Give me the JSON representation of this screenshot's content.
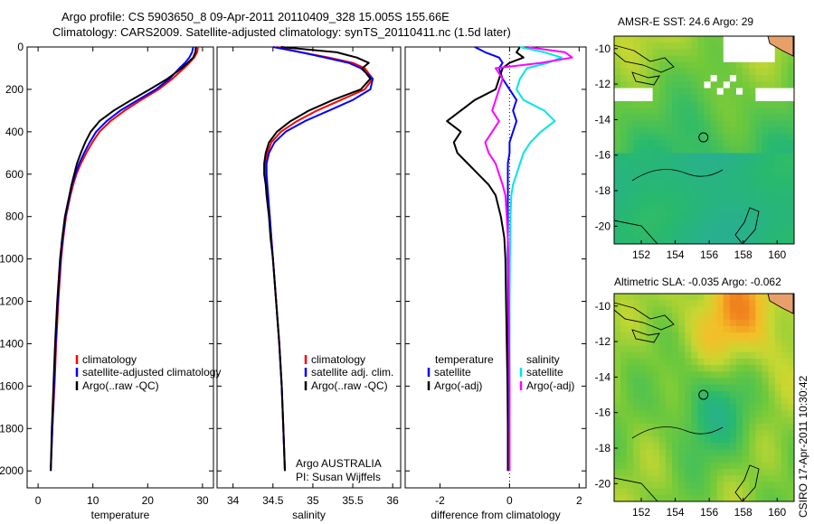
{
  "header": {
    "line1": "Argo profile: CS 5903650_8 09-Apr-2011 20110409_328 15.005S 155.66E",
    "line2": "Climatology: CARS2009. Satellite-adjusted climatology: synTS_20110411.nc (1.5d later)"
  },
  "footer": {
    "stamp": "CSIRO 17-Apr-2011 10:30:42"
  },
  "colors": {
    "clim": "#ff0000",
    "sat": "#0000ff",
    "argo": "#000000",
    "sal_sat": "#00e6e6",
    "sal_argo": "#ff00ff",
    "axis": "#000000"
  },
  "chart_data": [
    {
      "id": "temperature",
      "type": "line",
      "xlabel": "temperature",
      "xlim": [
        -2,
        32
      ],
      "ylim": [
        2080,
        0
      ],
      "xticks": [
        0,
        10,
        20,
        30
      ],
      "yticks": [
        0,
        200,
        400,
        600,
        800,
        1000,
        1200,
        1400,
        1600,
        1800,
        2000
      ],
      "legend": [
        "climatology",
        "satellite-adjusted climatology",
        "Argo(..raw -QC)"
      ],
      "depth": [
        0,
        25,
        50,
        75,
        100,
        150,
        200,
        250,
        300,
        350,
        400,
        450,
        500,
        550,
        600,
        650,
        700,
        800,
        900,
        1000,
        1200,
        1400,
        1600,
        1800,
        2000
      ],
      "series": [
        {
          "name": "climatology",
          "color": "red",
          "values": [
            29.2,
            29.0,
            28.5,
            27.6,
            26.6,
            24.5,
            22.0,
            18.8,
            15.8,
            13.2,
            11.2,
            9.9,
            8.8,
            7.8,
            7.0,
            6.4,
            5.9,
            5.1,
            4.6,
            4.2,
            3.7,
            3.3,
            3.0,
            2.6,
            2.3
          ]
        },
        {
          "name": "satellite-adjusted climatology",
          "color": "blue",
          "values": [
            28.3,
            28.1,
            27.6,
            26.8,
            25.8,
            24.0,
            21.5,
            18.2,
            15.0,
            12.5,
            10.6,
            9.4,
            8.4,
            7.5,
            6.8,
            6.2,
            5.8,
            5.0,
            4.5,
            4.1,
            3.6,
            3.2,
            2.9,
            2.6,
            2.3
          ]
        },
        {
          "name": "Argo(..raw -QC)",
          "color": "black",
          "values": [
            28.8,
            28.7,
            28.3,
            27.3,
            26.2,
            23.6,
            20.4,
            17.0,
            13.8,
            11.2,
            9.6,
            8.6,
            7.8,
            7.1,
            6.6,
            6.1,
            5.7,
            4.9,
            4.4,
            4.0,
            3.5,
            3.1,
            2.8,
            2.5,
            2.3
          ]
        }
      ]
    },
    {
      "id": "salinity",
      "type": "line",
      "xlabel": "salinity",
      "xlim": [
        33.8,
        36.1
      ],
      "ylim": [
        2080,
        0
      ],
      "xticks": [
        34,
        34.5,
        35,
        35.5,
        36
      ],
      "legend": [
        "climatology",
        "satellite adj. clim.",
        "Argo(..raw -QC)"
      ],
      "annotations": [
        "Argo AUSTRALIA",
        "PI: Susan Wijffels"
      ],
      "depth": [
        0,
        25,
        50,
        75,
        100,
        150,
        200,
        250,
        300,
        350,
        400,
        450,
        500,
        550,
        600,
        650,
        700,
        800,
        900,
        1000,
        1200,
        1400,
        1600,
        1800,
        2000
      ],
      "series": [
        {
          "name": "climatology",
          "color": "red",
          "values": [
            34.55,
            34.85,
            35.2,
            35.5,
            35.65,
            35.75,
            35.65,
            35.35,
            35.05,
            34.8,
            34.6,
            34.48,
            34.43,
            34.41,
            34.41,
            34.42,
            34.43,
            34.46,
            34.48,
            34.5,
            34.54,
            34.58,
            34.61,
            34.63,
            34.65
          ]
        },
        {
          "name": "satellite adj. clim.",
          "color": "blue",
          "values": [
            34.5,
            34.85,
            35.15,
            35.45,
            35.6,
            35.75,
            35.72,
            35.5,
            35.2,
            34.9,
            34.66,
            34.52,
            34.45,
            34.42,
            34.42,
            34.43,
            34.44,
            34.46,
            34.48,
            34.5,
            34.54,
            34.58,
            34.61,
            34.63,
            34.65
          ]
        },
        {
          "name": "Argo(..raw -QC)",
          "color": "black",
          "values": [
            34.6,
            35.3,
            35.55,
            35.7,
            35.62,
            35.72,
            35.6,
            35.25,
            34.95,
            34.72,
            34.55,
            34.45,
            34.41,
            34.39,
            34.39,
            34.41,
            34.42,
            34.45,
            34.47,
            34.5,
            34.54,
            34.58,
            34.61,
            34.63,
            34.65
          ]
        }
      ]
    },
    {
      "id": "difference",
      "type": "line",
      "xlabel": "difference from climatology",
      "xlim": [
        -3,
        2.2
      ],
      "ylim": [
        2080,
        0
      ],
      "xticks": [
        -2,
        0,
        2
      ],
      "legend_headers": [
        "temperature",
        "salinity"
      ],
      "legend": [
        "satellite",
        "Argo(-adj)",
        "satellite",
        "Argo(-adj)"
      ],
      "depth": [
        0,
        25,
        50,
        75,
        100,
        150,
        200,
        250,
        300,
        350,
        400,
        450,
        500,
        550,
        600,
        650,
        700,
        800,
        900,
        1000,
        1200,
        1400,
        1600,
        1800,
        2000
      ],
      "series": [
        {
          "name": "temperature satellite",
          "color": "blue",
          "values": [
            -1.0,
            -0.7,
            -0.3,
            -0.2,
            -0.3,
            -0.2,
            0.0,
            0.2,
            0.1,
            0.2,
            0.1,
            0.0,
            0.0,
            -0.05,
            -0.05,
            -0.05,
            -0.05,
            -0.05,
            -0.05,
            -0.05,
            -0.04,
            -0.03,
            -0.02,
            -0.02,
            -0.01
          ]
        },
        {
          "name": "temperature Argo(-adj)",
          "color": "black",
          "values": [
            0.3,
            0.2,
            0.4,
            0.0,
            -0.2,
            -0.3,
            -0.4,
            -1.0,
            -1.4,
            -1.8,
            -1.4,
            -1.6,
            -1.5,
            -1.2,
            -0.9,
            -0.6,
            -0.4,
            -0.25,
            -0.15,
            -0.12,
            -0.1,
            -0.08,
            -0.06,
            -0.05,
            -0.05
          ]
        },
        {
          "name": "salinity satellite",
          "color": "cyan",
          "values": [
            0.3,
            1.0,
            1.5,
            1.1,
            0.5,
            0.3,
            0.2,
            0.4,
            1.0,
            1.3,
            0.9,
            0.6,
            0.4,
            0.3,
            0.2,
            0.1,
            0.05,
            0.03,
            0.02,
            0.01,
            0.0,
            0.0,
            0.0,
            0.0,
            0.0
          ]
        },
        {
          "name": "salinity Argo(-adj)",
          "color": "magenta",
          "values": [
            0.5,
            1.6,
            1.8,
            0.9,
            -0.4,
            -0.2,
            -0.3,
            -0.4,
            -0.5,
            -0.3,
            -0.5,
            -0.7,
            -0.6,
            -0.4,
            -0.3,
            -0.2,
            -0.12,
            -0.08,
            -0.05,
            -0.03,
            -0.02,
            -0.01,
            0.0,
            0.0,
            0.0
          ]
        }
      ]
    },
    {
      "id": "sst_map",
      "type": "heatmap",
      "title": "AMSR-E SST: 24.6 Argo: 29",
      "xticks": [
        152,
        154,
        156,
        158,
        160
      ],
      "yticks": [
        -10,
        -12,
        -14,
        -16,
        -18,
        -20
      ],
      "xlim": [
        150.4,
        161
      ],
      "ylim": [
        -21,
        -9.3
      ],
      "marker": {
        "lon": 155.66,
        "lat": -15.0
      }
    },
    {
      "id": "sla_map",
      "type": "heatmap",
      "title": "Altimetric SLA: -0.035 Argo: -0.062",
      "xticks": [
        152,
        154,
        156,
        158,
        160
      ],
      "yticks": [
        -10,
        -12,
        -14,
        -16,
        -18,
        -20
      ],
      "xlim": [
        150.4,
        161
      ],
      "ylim": [
        -21,
        -9.3
      ],
      "marker": {
        "lon": 155.66,
        "lat": -15.0
      }
    }
  ]
}
